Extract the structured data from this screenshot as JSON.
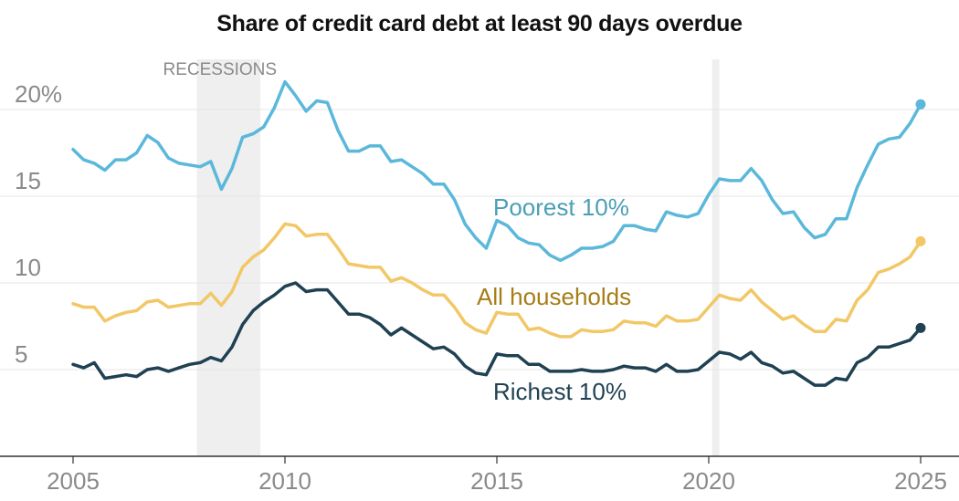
{
  "chart_data": {
    "type": "line",
    "title": "Share of credit card debt at least 90 days overdue",
    "xlim": [
      2004.8,
      2025.7
    ],
    "ylim": [
      0,
      24
    ],
    "x_ticks": [
      2005,
      2010,
      2015,
      2020,
      2025
    ],
    "x_tick_labels": [
      "2005",
      "2010",
      "2015",
      "2020",
      "2025"
    ],
    "y_ticks": [
      5,
      10,
      15,
      20
    ],
    "y_tick_labels": [
      "5",
      "10",
      "15",
      "20%"
    ],
    "grid": "horizontal",
    "recessions": {
      "label": "RECESSIONS",
      "periods": [
        [
          2007.92,
          2009.42
        ],
        [
          2020.08,
          2020.25
        ]
      ]
    },
    "series": [
      {
        "name": "Poorest 10%",
        "color": "#5bb8db",
        "label_color": "#4a9fb6",
        "x": [
          2005.0,
          2005.25,
          2005.5,
          2005.75,
          2006.0,
          2006.25,
          2006.5,
          2006.75,
          2007.0,
          2007.25,
          2007.5,
          2007.75,
          2008.0,
          2008.25,
          2008.5,
          2008.75,
          2009.0,
          2009.25,
          2009.5,
          2009.75,
          2010.0,
          2010.25,
          2010.5,
          2010.75,
          2011.0,
          2011.25,
          2011.5,
          2011.75,
          2012.0,
          2012.25,
          2012.5,
          2012.75,
          2013.0,
          2013.25,
          2013.5,
          2013.75,
          2014.0,
          2014.25,
          2014.5,
          2014.75,
          2015.0,
          2015.25,
          2015.5,
          2015.75,
          2016.0,
          2016.25,
          2016.5,
          2016.75,
          2017.0,
          2017.25,
          2017.5,
          2017.75,
          2018.0,
          2018.25,
          2018.5,
          2018.75,
          2019.0,
          2019.25,
          2019.5,
          2019.75,
          2020.0,
          2020.25,
          2020.5,
          2020.75,
          2021.0,
          2021.25,
          2021.5,
          2021.75,
          2022.0,
          2022.25,
          2022.5,
          2022.75,
          2023.0,
          2023.25,
          2023.5,
          2023.75,
          2024.0,
          2024.25,
          2024.5,
          2024.75,
          2025.0
        ],
        "y": [
          17.7,
          17.1,
          16.9,
          16.5,
          17.1,
          17.1,
          17.5,
          18.5,
          18.1,
          17.2,
          16.9,
          16.8,
          16.7,
          17.0,
          15.4,
          16.6,
          18.4,
          18.6,
          19.0,
          20.1,
          21.6,
          20.8,
          19.9,
          20.5,
          20.4,
          18.8,
          17.6,
          17.6,
          17.9,
          17.9,
          17.0,
          17.1,
          16.7,
          16.3,
          15.7,
          15.7,
          14.8,
          13.4,
          12.6,
          12.0,
          13.6,
          13.3,
          12.6,
          12.3,
          12.2,
          11.6,
          11.3,
          11.6,
          12.0,
          12.0,
          12.1,
          12.4,
          13.3,
          13.3,
          13.1,
          13.0,
          14.1,
          13.9,
          13.8,
          14.0,
          15.1,
          16.0,
          15.9,
          15.9,
          16.6,
          15.9,
          14.8,
          14.0,
          14.1,
          13.2,
          12.6,
          12.8,
          13.7,
          13.7,
          15.5,
          16.8,
          18.0,
          18.3,
          18.4,
          19.2,
          20.3
        ]
      },
      {
        "name": "All households",
        "color": "#f2c766",
        "label_color": "#a67d16",
        "x": [
          2005.0,
          2005.25,
          2005.5,
          2005.75,
          2006.0,
          2006.25,
          2006.5,
          2006.75,
          2007.0,
          2007.25,
          2007.5,
          2007.75,
          2008.0,
          2008.25,
          2008.5,
          2008.75,
          2009.0,
          2009.25,
          2009.5,
          2009.75,
          2010.0,
          2010.25,
          2010.5,
          2010.75,
          2011.0,
          2011.25,
          2011.5,
          2011.75,
          2012.0,
          2012.25,
          2012.5,
          2012.75,
          2013.0,
          2013.25,
          2013.5,
          2013.75,
          2014.0,
          2014.25,
          2014.5,
          2014.75,
          2015.0,
          2015.25,
          2015.5,
          2015.75,
          2016.0,
          2016.25,
          2016.5,
          2016.75,
          2017.0,
          2017.25,
          2017.5,
          2017.75,
          2018.0,
          2018.25,
          2018.5,
          2018.75,
          2019.0,
          2019.25,
          2019.5,
          2019.75,
          2020.0,
          2020.25,
          2020.5,
          2020.75,
          2021.0,
          2021.25,
          2021.5,
          2021.75,
          2022.0,
          2022.25,
          2022.5,
          2022.75,
          2023.0,
          2023.25,
          2023.5,
          2023.75,
          2024.0,
          2024.25,
          2024.5,
          2024.75,
          2025.0
        ],
        "y": [
          8.8,
          8.6,
          8.6,
          7.8,
          8.1,
          8.3,
          8.4,
          8.9,
          9.0,
          8.6,
          8.7,
          8.8,
          8.8,
          9.4,
          8.7,
          9.5,
          10.9,
          11.5,
          11.9,
          12.6,
          13.4,
          13.3,
          12.7,
          12.8,
          12.8,
          12.0,
          11.1,
          11.0,
          10.9,
          10.9,
          10.1,
          10.3,
          10.0,
          9.6,
          9.3,
          9.3,
          8.6,
          7.7,
          7.3,
          7.1,
          8.3,
          8.2,
          8.2,
          7.3,
          7.4,
          7.1,
          6.9,
          6.9,
          7.3,
          7.2,
          7.2,
          7.3,
          7.8,
          7.7,
          7.7,
          7.5,
          8.1,
          7.8,
          7.8,
          7.9,
          8.6,
          9.3,
          9.1,
          9.0,
          9.6,
          8.9,
          8.4,
          7.9,
          8.1,
          7.6,
          7.2,
          7.2,
          7.9,
          7.8,
          9.0,
          9.6,
          10.6,
          10.8,
          11.1,
          11.5,
          12.4
        ]
      },
      {
        "name": "Richest 10%",
        "color": "#1f4152",
        "label_color": "#1f4152",
        "x": [
          2005.0,
          2005.25,
          2005.5,
          2005.75,
          2006.0,
          2006.25,
          2006.5,
          2006.75,
          2007.0,
          2007.25,
          2007.5,
          2007.75,
          2008.0,
          2008.25,
          2008.5,
          2008.75,
          2009.0,
          2009.25,
          2009.5,
          2009.75,
          2010.0,
          2010.25,
          2010.5,
          2010.75,
          2011.0,
          2011.25,
          2011.5,
          2011.75,
          2012.0,
          2012.25,
          2012.5,
          2012.75,
          2013.0,
          2013.25,
          2013.5,
          2013.75,
          2014.0,
          2014.25,
          2014.5,
          2014.75,
          2015.0,
          2015.25,
          2015.5,
          2015.75,
          2016.0,
          2016.25,
          2016.5,
          2016.75,
          2017.0,
          2017.25,
          2017.5,
          2017.75,
          2018.0,
          2018.25,
          2018.5,
          2018.75,
          2019.0,
          2019.25,
          2019.5,
          2019.75,
          2020.0,
          2020.25,
          2020.5,
          2020.75,
          2021.0,
          2021.25,
          2021.5,
          2021.75,
          2022.0,
          2022.25,
          2022.5,
          2022.75,
          2023.0,
          2023.25,
          2023.5,
          2023.75,
          2024.0,
          2024.25,
          2024.5,
          2024.75,
          2025.0
        ],
        "y": [
          5.3,
          5.1,
          5.4,
          4.5,
          4.6,
          4.7,
          4.6,
          5.0,
          5.1,
          4.9,
          5.1,
          5.3,
          5.4,
          5.7,
          5.5,
          6.3,
          7.6,
          8.4,
          8.9,
          9.3,
          9.8,
          10.0,
          9.5,
          9.6,
          9.6,
          8.9,
          8.2,
          8.2,
          8.0,
          7.6,
          7.0,
          7.4,
          7.0,
          6.6,
          6.2,
          6.3,
          5.9,
          5.2,
          4.8,
          4.7,
          5.9,
          5.8,
          5.8,
          5.3,
          5.3,
          4.9,
          4.9,
          4.9,
          5.0,
          4.9,
          4.9,
          5.0,
          5.2,
          5.1,
          5.1,
          4.9,
          5.3,
          4.9,
          4.9,
          5.0,
          5.5,
          6.0,
          5.9,
          5.6,
          6.0,
          5.4,
          5.2,
          4.8,
          4.9,
          4.5,
          4.1,
          4.1,
          4.5,
          4.4,
          5.4,
          5.7,
          6.3,
          6.3,
          6.5,
          6.7,
          7.4
        ]
      }
    ]
  }
}
